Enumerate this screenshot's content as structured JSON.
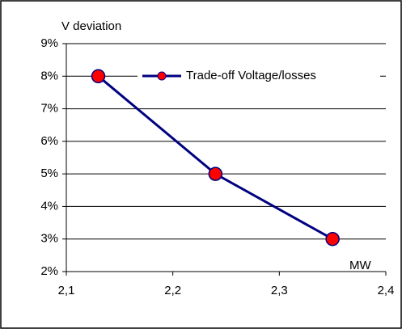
{
  "chart_data": {
    "type": "line",
    "y_label": "V deviation",
    "x_label": "MW",
    "x": [
      2.13,
      2.24,
      2.35
    ],
    "series": [
      {
        "name": "Trade-off Voltage/losses",
        "color": "#000080",
        "marker_color": "#ff0000",
        "values": [
          8,
          5,
          3
        ]
      }
    ],
    "xlim": [
      2.1,
      2.4
    ],
    "xticks": [
      {
        "value": 2.1,
        "label": "2,1"
      },
      {
        "value": 2.2,
        "label": "2,2"
      },
      {
        "value": 2.3,
        "label": "2,3"
      },
      {
        "value": 2.4,
        "label": "2,4"
      }
    ],
    "ylim": [
      2,
      9
    ],
    "yticks": [
      {
        "value": 2,
        "label": "2%"
      },
      {
        "value": 3,
        "label": "3%"
      },
      {
        "value": 4,
        "label": "4%"
      },
      {
        "value": 5,
        "label": "5%"
      },
      {
        "value": 6,
        "label": "6%"
      },
      {
        "value": 7,
        "label": "7%"
      },
      {
        "value": 8,
        "label": "8%"
      },
      {
        "value": 9,
        "label": "9%"
      }
    ],
    "grid": true
  }
}
